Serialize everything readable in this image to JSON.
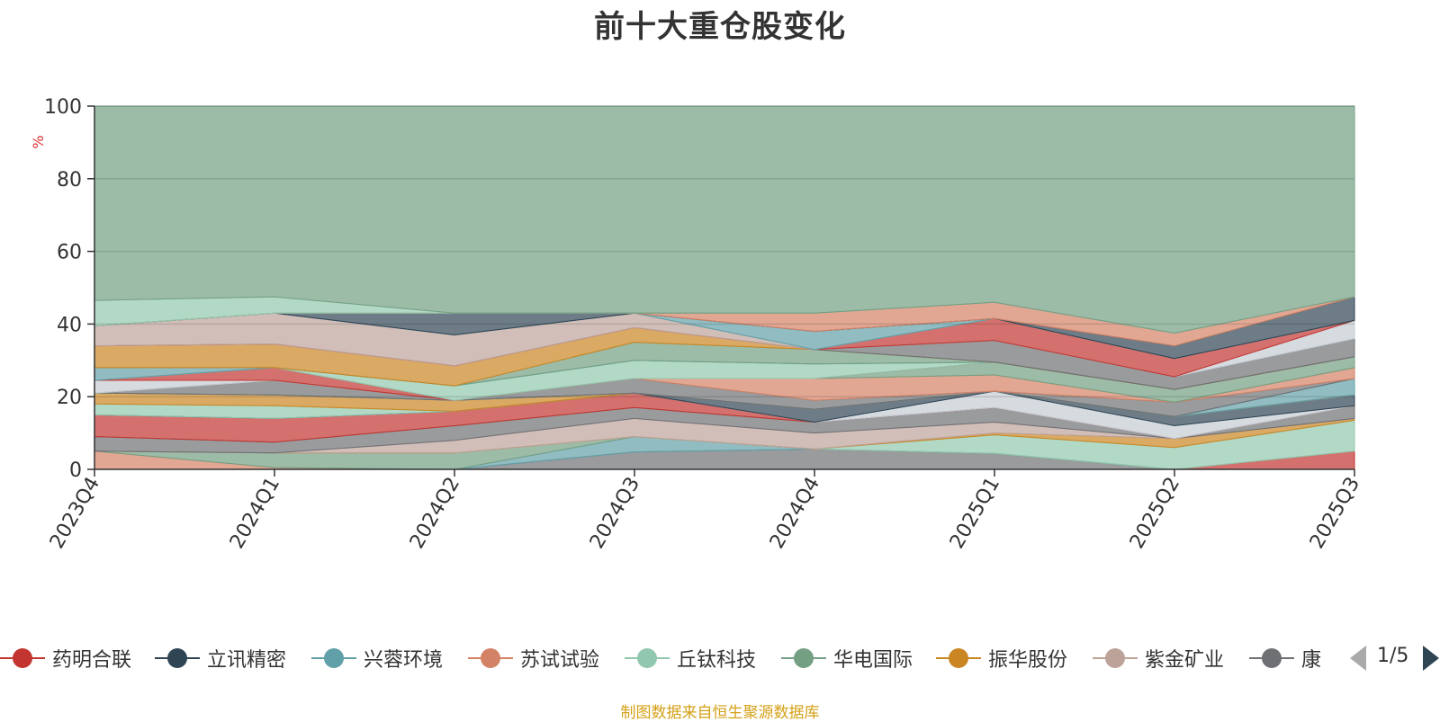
{
  "title": "前十大重仓股变化",
  "source_note": "制图数据来自恒生聚源数据库",
  "legend_pager": "1/5",
  "chart_data": {
    "type": "area",
    "title": "前十大重仓股变化",
    "ylabel": "%",
    "xlabel": "",
    "ylim": [
      0,
      100
    ],
    "yticks": [
      0,
      20,
      40,
      60,
      80,
      100
    ],
    "grid": true,
    "stacked": true,
    "categories": [
      "2023Q4",
      "2024Q1",
      "2024Q2",
      "2024Q3",
      "2024Q4",
      "2025Q1",
      "2025Q2",
      "2025Q3"
    ],
    "legend_visible": [
      "药明合联",
      "立讯精密",
      "兴蓉环境",
      "苏试试验",
      "丘钛科技",
      "华电国际",
      "振华股份",
      "紫金矿业",
      "康"
    ],
    "legend_colors": [
      "#c23531",
      "#2f4554",
      "#61a0a8",
      "#d48265",
      "#91c7ae",
      "#749f83",
      "#ca8622",
      "#bda29a",
      "#6e7074"
    ],
    "series_bands": [
      {
        "color": "#6e7074",
        "low": [
          0,
          0,
          0,
          0,
          0,
          0,
          0,
          0
        ],
        "high": [
          0,
          0,
          0,
          4.8,
          5.6,
          4.4,
          0,
          0
        ]
      },
      {
        "color": "#c23531",
        "low": [
          0,
          0,
          0,
          0,
          0,
          0,
          0,
          0
        ],
        "high": [
          0,
          0,
          0,
          0,
          0,
          0,
          0,
          5
        ]
      },
      {
        "color": "#d48265",
        "low": [
          0,
          0,
          0,
          0,
          0,
          0,
          0,
          0
        ],
        "high": [
          5,
          0.5,
          0,
          0,
          0,
          0,
          0,
          0
        ]
      },
      {
        "color": "#61a0a8",
        "low": [
          0,
          0,
          0,
          4.8,
          5.6,
          4.4,
          0,
          0
        ],
        "high": [
          0,
          0,
          0,
          9,
          5.6,
          4.4,
          0,
          0
        ]
      },
      {
        "color": "#749f83",
        "low": [
          5,
          0.5,
          0,
          9,
          5.6,
          4.4,
          0,
          0
        ],
        "high": [
          5,
          4.5,
          4.5,
          9,
          5.6,
          4.4,
          0,
          0
        ]
      },
      {
        "color": "#91c7ae",
        "low": [
          5,
          4.5,
          4.5,
          9,
          5.6,
          4.4,
          0,
          5
        ],
        "high": [
          5,
          4.5,
          4.5,
          9,
          5.6,
          9.5,
          6,
          13.5
        ]
      },
      {
        "color": "#ca8622",
        "low": [
          5,
          4.5,
          4.5,
          9,
          5.6,
          9.5,
          6,
          13.5
        ],
        "high": [
          5,
          4.5,
          4.5,
          9,
          5.6,
          10,
          8.5,
          14
        ]
      },
      {
        "color": "#bda29a",
        "low": [
          5,
          4.5,
          4.5,
          9,
          5.6,
          10,
          8.5,
          14
        ],
        "high": [
          5,
          4.5,
          8,
          14,
          10,
          13,
          8.5,
          14
        ]
      },
      {
        "color": "#6e7074",
        "low": [
          5,
          4.5,
          8,
          14,
          10,
          13,
          8.5,
          14
        ],
        "high": [
          9,
          7.5,
          12,
          17,
          13,
          17,
          8.5,
          17.5
        ]
      },
      {
        "color": "#c23531",
        "low": [
          9,
          7.5,
          12,
          17,
          13,
          17,
          8.5,
          17.5
        ],
        "high": [
          15,
          14,
          16,
          21,
          13,
          17,
          8.5,
          17.5
        ]
      },
      {
        "color": "#c4ccd3",
        "low": [
          15,
          14,
          16,
          21,
          13,
          17,
          8.5,
          17.5
        ],
        "high": [
          15,
          14,
          16,
          21,
          13,
          21.5,
          12,
          17.5
        ]
      },
      {
        "color": "#2f4554",
        "low": [
          15,
          14,
          16,
          21,
          13,
          21.5,
          12,
          17.5
        ],
        "high": [
          15,
          14,
          16,
          21,
          16.5,
          21.5,
          14.5,
          20.5
        ]
      },
      {
        "color": "#91c7ae",
        "low": [
          15,
          14,
          16,
          21,
          16.5,
          21.5,
          14.5,
          20.5
        ],
        "high": [
          18,
          17.5,
          16,
          21,
          16.5,
          21.5,
          14.5,
          20.5
        ]
      },
      {
        "color": "#ca8622",
        "low": [
          18,
          17.5,
          16,
          21,
          16.5,
          21.5,
          14.5,
          20.5
        ],
        "high": [
          21,
          20.5,
          19,
          21,
          16.5,
          21.5,
          14.5,
          20.5
        ]
      },
      {
        "color": "#61a0a8",
        "low": [
          21,
          20.5,
          19,
          21,
          16.5,
          21.5,
          14.5,
          20.5
        ],
        "high": [
          21,
          20.5,
          19,
          21,
          16.5,
          21.5,
          14.5,
          25
        ]
      },
      {
        "color": "#6e7074",
        "low": [
          21,
          20.5,
          19,
          21,
          16.5,
          21.5,
          14.5,
          25
        ],
        "high": [
          21,
          24.5,
          19,
          25,
          19,
          21.5,
          18.5,
          25
        ]
      },
      {
        "color": "#d48265",
        "low": [
          21,
          24.5,
          19,
          25,
          19,
          21.5,
          18.5,
          25
        ],
        "high": [
          21,
          24.5,
          19,
          25,
          25,
          26,
          18.5,
          28
        ]
      },
      {
        "color": "#749f83",
        "low": [
          21,
          24.5,
          19,
          25,
          25,
          26,
          18.5,
          28
        ],
        "high": [
          21,
          24.5,
          19,
          25,
          25,
          29.5,
          22,
          31
        ]
      },
      {
        "color": "#c4ccd3",
        "low": [
          21,
          24.5,
          19,
          25,
          25,
          29.5,
          22,
          31
        ],
        "high": [
          24.5,
          24.5,
          19,
          25,
          25,
          29.5,
          22,
          31
        ]
      },
      {
        "color": "#c23531",
        "low": [
          24.5,
          24.5,
          19,
          25,
          25,
          29.5,
          22,
          31
        ],
        "high": [
          24.5,
          28,
          19,
          25,
          25,
          29.5,
          22,
          31
        ]
      },
      {
        "color": "#91c7ae",
        "low": [
          24.5,
          28,
          19,
          25,
          25,
          29.5,
          22,
          31
        ],
        "high": [
          24.5,
          28,
          23,
          30,
          29,
          29.5,
          22,
          31
        ]
      },
      {
        "color": "#61a0a8",
        "low": [
          24.5,
          28,
          23,
          30,
          29,
          29.5,
          22,
          31
        ],
        "high": [
          28,
          28,
          23,
          30,
          29,
          29.5,
          22,
          31
        ]
      },
      {
        "color": "#749f83",
        "low": [
          28,
          28,
          23,
          30,
          29,
          29.5,
          22,
          31
        ],
        "high": [
          28,
          28,
          23,
          35,
          33,
          29.5,
          22,
          31
        ]
      },
      {
        "color": "#ca8622",
        "low": [
          28,
          28,
          23,
          35,
          33,
          29.5,
          22,
          31
        ],
        "high": [
          34,
          34.5,
          28.5,
          39,
          33,
          29.5,
          22,
          31
        ]
      },
      {
        "color": "#6e7074",
        "low": [
          34,
          34.5,
          28.5,
          39,
          33,
          29.5,
          22,
          31
        ],
        "high": [
          34,
          34.5,
          28.5,
          39,
          33,
          35.5,
          25.5,
          36
        ]
      },
      {
        "color": "#c4ccd3",
        "low": [
          34,
          34.5,
          28.5,
          39,
          33,
          35.5,
          25.5,
          36
        ],
        "high": [
          34,
          34.5,
          28.5,
          39,
          33,
          35.5,
          25.5,
          41
        ]
      },
      {
        "color": "#c23531",
        "low": [
          34,
          34.5,
          28.5,
          39,
          33,
          35.5,
          25.5,
          41
        ],
        "high": [
          34,
          34.5,
          28.5,
          39,
          33,
          41.5,
          30.5,
          41
        ]
      },
      {
        "color": "#bda29a",
        "low": [
          34,
          34.5,
          28.5,
          39,
          33,
          41.5,
          30.5,
          41
        ],
        "high": [
          39.5,
          43,
          37,
          43,
          33,
          41.5,
          30.5,
          41
        ]
      },
      {
        "color": "#61a0a8",
        "low": [
          39.5,
          43,
          37,
          43,
          33,
          41.5,
          30.5,
          41
        ],
        "high": [
          39.5,
          43,
          37,
          43,
          38,
          41.5,
          30.5,
          41
        ]
      },
      {
        "color": "#2f4554",
        "low": [
          39.5,
          43,
          37,
          43,
          38,
          41.5,
          30.5,
          41
        ],
        "high": [
          39.5,
          43,
          43,
          43,
          38,
          41.5,
          34,
          47.5
        ]
      },
      {
        "color": "#d48265",
        "low": [
          39.5,
          43,
          43,
          43,
          38,
          41.5,
          34,
          47.5
        ],
        "high": [
          39.5,
          43,
          43,
          43,
          43,
          46,
          37.5,
          47.5
        ]
      },
      {
        "color": "#91c7ae",
        "low": [
          39.5,
          43,
          43,
          43,
          43,
          46,
          37.5,
          47.5
        ],
        "high": [
          46.5,
          47.5,
          43,
          43,
          43,
          46,
          37.5,
          47.5
        ]
      },
      {
        "color": "#749f83",
        "low": [
          46.5,
          47.5,
          43,
          43,
          43,
          46,
          37.5,
          47.5
        ],
        "high": [
          100,
          100,
          100,
          100,
          100,
          100,
          100,
          100
        ]
      }
    ]
  },
  "colors": {
    "axis": "#333333",
    "grid": "#000000",
    "ylabel": "#e03030"
  }
}
